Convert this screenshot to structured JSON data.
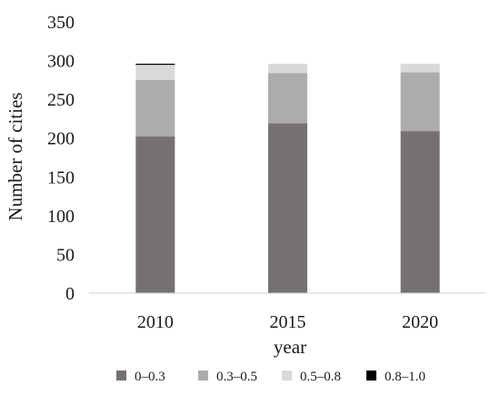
{
  "chart_data": {
    "type": "bar",
    "stacked": true,
    "categories": [
      "2010",
      "2015",
      "2020"
    ],
    "series": [
      {
        "name": "0–0.3",
        "color": "#767171",
        "values": [
          202,
          219,
          209
        ]
      },
      {
        "name": "0.3–0.5",
        "color": "#AEABAB",
        "values": [
          73,
          65,
          76
        ]
      },
      {
        "name": "0.5–0.8",
        "color": "#D9D9D9",
        "values": [
          20,
          12,
          11
        ]
      },
      {
        "name": "0.8–1.0",
        "color": "#000000",
        "values": [
          1,
          0,
          0
        ]
      }
    ],
    "xlabel": "year",
    "ylabel": "Number of cities",
    "ylim": [
      0,
      350
    ],
    "yticks": [
      "0",
      "50",
      "100",
      "150",
      "200",
      "250",
      "300",
      "350"
    ],
    "grid": false,
    "legend_position": "bottom"
  }
}
